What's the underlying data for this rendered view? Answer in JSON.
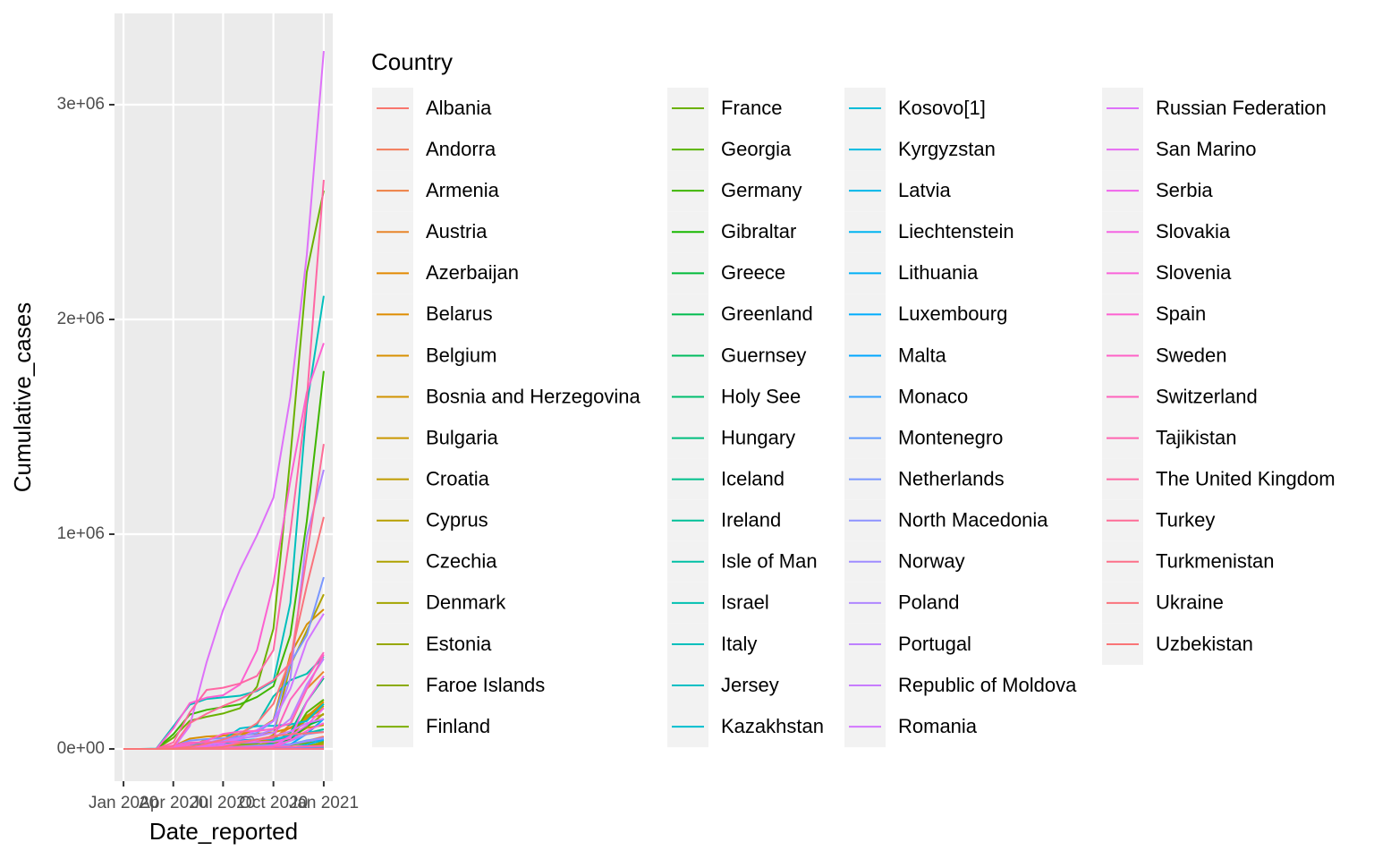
{
  "chart_data": {
    "type": "line",
    "x_label": "Date_reported",
    "y_label": "Cumulative_cases",
    "legend_title": "Country",
    "grid": true,
    "legend_position": "right",
    "x": [
      "Jan 2020",
      "Feb 2020",
      "Mar 2020",
      "Apr 2020",
      "May 2020",
      "Jun 2020",
      "Jul 2020",
      "Aug 2020",
      "Sep 2020",
      "Oct 2020",
      "Nov 2020",
      "Dec 2020",
      "Jan 2021"
    ],
    "xlim": [
      "Jan 2020",
      "Jan 2021"
    ],
    "xticks": [
      "Jan 2020",
      "Apr 2020",
      "Jul 2020",
      "Oct 2020",
      "Jan 2021"
    ],
    "ylim": [
      -150000,
      3425000
    ],
    "yticks": [
      {
        "value": 0,
        "label": "0e+00"
      },
      {
        "value": 1000000,
        "label": "1e+06"
      },
      {
        "value": 2000000,
        "label": "2e+06"
      },
      {
        "value": 3000000,
        "label": "3e+06"
      }
    ],
    "series": [
      {
        "name": "Albania",
        "color": "#F8766D",
        "values": [
          0,
          0,
          0,
          240,
          780,
          1140,
          2500,
          5400,
          9500,
          13600,
          20000,
          37000,
          58000
        ]
      },
      {
        "name": "Andorra",
        "color": "#F37B59",
        "values": [
          0,
          0,
          0,
          390,
          750,
          760,
          860,
          1000,
          1400,
          2300,
          5000,
          7000,
          8300
        ]
      },
      {
        "name": "Armenia",
        "color": "#EE8044",
        "values": [
          0,
          0,
          0,
          570,
          2000,
          9500,
          26000,
          38000,
          44000,
          49000,
          100000,
          143000,
          160000
        ]
      },
      {
        "name": "Austria",
        "color": "#E8852A",
        "values": [
          0,
          0,
          10,
          10000,
          15000,
          17000,
          18000,
          22000,
          28000,
          43000,
          114000,
          280000,
          360000
        ]
      },
      {
        "name": "Azerbaijan",
        "color": "#E38900",
        "values": [
          0,
          0,
          0,
          300,
          1800,
          5300,
          20000,
          33000,
          38000,
          41000,
          60000,
          150000,
          220000
        ]
      },
      {
        "name": "Belarus",
        "color": "#DE8C00",
        "values": [
          0,
          0,
          0,
          150,
          15000,
          43000,
          62000,
          68000,
          71000,
          77000,
          97000,
          140000,
          190000
        ]
      },
      {
        "name": "Belgium",
        "color": "#D89000",
        "values": [
          0,
          0,
          1,
          13000,
          48000,
          58000,
          62000,
          71000,
          86000,
          135000,
          440000,
          580000,
          650000
        ]
      },
      {
        "name": "Bosnia and Herzegovina",
        "color": "#D19300",
        "values": [
          0,
          0,
          0,
          600,
          1700,
          2600,
          5900,
          12000,
          19300,
          26000,
          55000,
          98000,
          111000
        ]
      },
      {
        "name": "Bulgaria",
        "color": "#CA9700",
        "values": [
          0,
          0,
          0,
          400,
          1600,
          2500,
          5400,
          12500,
          16700,
          20500,
          60000,
          155000,
          200000
        ]
      },
      {
        "name": "Croatia",
        "color": "#C09B00",
        "values": [
          0,
          0,
          0,
          960,
          2080,
          2240,
          3000,
          5400,
          10700,
          16000,
          56000,
          140000,
          210000
        ]
      },
      {
        "name": "Cyprus",
        "color": "#B79F00",
        "values": [
          0,
          0,
          0,
          350,
          850,
          950,
          1000,
          1200,
          1500,
          1800,
          5000,
          11000,
          22000
        ]
      },
      {
        "name": "Czechia",
        "color": "#AEA200",
        "values": [
          0,
          0,
          3,
          3300,
          7600,
          9200,
          12000,
          17000,
          26000,
          66000,
          390000,
          550000,
          720000
        ]
      },
      {
        "name": "Denmark",
        "color": "#A3A500",
        "values": [
          0,
          0,
          10,
          3200,
          9500,
          11900,
          13000,
          14000,
          18000,
          30000,
          50000,
          100000,
          165000
        ]
      },
      {
        "name": "Estonia",
        "color": "#97A800",
        "values": [
          0,
          0,
          0,
          780,
          1700,
          1970,
          2000,
          2100,
          2400,
          3400,
          6000,
          13000,
          30000
        ]
      },
      {
        "name": "Faroe Islands",
        "color": "#8BAB00",
        "values": [
          0,
          0,
          0,
          170,
          187,
          187,
          188,
          300,
          420,
          480,
          510,
          520,
          590
        ]
      },
      {
        "name": "Finland",
        "color": "#7CAE00",
        "values": [
          0,
          0,
          12,
          1400,
          5000,
          6900,
          7200,
          7500,
          8300,
          10000,
          18000,
          27000,
          36000
        ]
      },
      {
        "name": "France",
        "color": "#6BB100",
        "values": [
          0,
          0,
          100,
          52000,
          131000,
          150000,
          165000,
          190000,
          290000,
          560000,
          1360000,
          2220000,
          2600000
        ]
      },
      {
        "name": "Georgia",
        "color": "#59B400",
        "values": [
          0,
          0,
          0,
          120,
          600,
          800,
          930,
          1200,
          1400,
          5000,
          51000,
          170000,
          230000
        ]
      },
      {
        "name": "Germany",
        "color": "#3EB600",
        "values": [
          0,
          0,
          130,
          68000,
          160000,
          182000,
          195000,
          208000,
          242000,
          292000,
          530000,
          1060000,
          1760000
        ]
      },
      {
        "name": "Gibraltar",
        "color": "#17B800",
        "values": [
          0,
          0,
          0,
          70,
          140,
          150,
          180,
          190,
          330,
          510,
          900,
          1000,
          1800
        ]
      },
      {
        "name": "Greece",
        "color": "#00BA38",
        "values": [
          0,
          0,
          0,
          1400,
          2600,
          2900,
          3400,
          4900,
          10000,
          19000,
          46000,
          108000,
          140000
        ]
      },
      {
        "name": "Greenland",
        "color": "#00BB4E",
        "values": [
          0,
          0,
          0,
          10,
          11,
          13,
          13,
          14,
          14,
          16,
          18,
          18,
          30
        ]
      },
      {
        "name": "Guernsey",
        "color": "#00BC5F",
        "values": [
          0,
          0,
          0,
          100,
          250,
          250,
          250,
          250,
          250,
          250,
          270,
          300,
          310
        ]
      },
      {
        "name": "Holy See",
        "color": "#00BD6F",
        "values": [
          0,
          0,
          0,
          6,
          12,
          12,
          12,
          12,
          12,
          12,
          26,
          27,
          27
        ]
      },
      {
        "name": "Hungary",
        "color": "#00BE7E",
        "values": [
          0,
          0,
          0,
          580,
          2900,
          3900,
          4200,
          4500,
          6000,
          30000,
          76000,
          220000,
          330000
        ]
      },
      {
        "name": "Iceland",
        "color": "#00C08B",
        "values": [
          0,
          0,
          3,
          1200,
          1800,
          1800,
          1830,
          2000,
          2100,
          3300,
          5100,
          5500,
          5800
        ]
      },
      {
        "name": "Ireland",
        "color": "#00C098",
        "values": [
          0,
          0,
          1,
          3200,
          20600,
          25000,
          25500,
          26700,
          29000,
          37000,
          65000,
          73000,
          92000
        ]
      },
      {
        "name": "Isle of Man",
        "color": "#00C0A5",
        "values": [
          0,
          0,
          0,
          60,
          330,
          336,
          336,
          336,
          336,
          340,
          350,
          360,
          370
        ]
      },
      {
        "name": "Israel",
        "color": "#00C0B1",
        "values": [
          0,
          0,
          10,
          6000,
          16000,
          17000,
          26000,
          73000,
          114000,
          245000,
          320000,
          350000,
          430000
        ]
      },
      {
        "name": "Italy",
        "color": "#00BFBC",
        "values": [
          0,
          0,
          1700,
          105000,
          206000,
          233000,
          240000,
          248000,
          270000,
          315000,
          680000,
          1600000,
          2110000
        ]
      },
      {
        "name": "Jersey",
        "color": "#00BFC4",
        "values": [
          0,
          0,
          0,
          80,
          280,
          310,
          320,
          350,
          400,
          450,
          900,
          2200,
          3000
        ]
      },
      {
        "name": "Kazakhstan",
        "color": "#00BECF",
        "values": [
          0,
          0,
          0,
          360,
          4300,
          11500,
          43000,
          96000,
          106000,
          108000,
          114000,
          130000,
          210000
        ]
      },
      {
        "name": "Kosovo[1]",
        "color": "#00BCD8",
        "values": [
          0,
          0,
          0,
          100,
          800,
          1100,
          3300,
          8500,
          13800,
          16000,
          23000,
          38000,
          50000
        ]
      },
      {
        "name": "Kyrgyzstan",
        "color": "#00BAE1",
        "values": [
          0,
          0,
          0,
          110,
          750,
          1900,
          10000,
          40000,
          45000,
          47000,
          60000,
          75000,
          81000
        ]
      },
      {
        "name": "Latvia",
        "color": "#00B7E9",
        "values": [
          0,
          0,
          0,
          450,
          1000,
          1080,
          1120,
          1250,
          1300,
          1900,
          6000,
          20000,
          42000
        ]
      },
      {
        "name": "Liechtenstein",
        "color": "#00B4F0",
        "values": [
          0,
          0,
          0,
          60,
          82,
          82,
          84,
          100,
          110,
          120,
          1000,
          1600,
          2000
        ]
      },
      {
        "name": "Lithuania",
        "color": "#00B0F6",
        "values": [
          0,
          0,
          0,
          580,
          1400,
          1690,
          1830,
          2100,
          3500,
          4800,
          21000,
          70000,
          140000
        ]
      },
      {
        "name": "Luxembourg",
        "color": "#00ACFC",
        "values": [
          0,
          0,
          7,
          2300,
          3900,
          4000,
          4500,
          7000,
          7900,
          9300,
          20000,
          35000,
          46000
        ]
      },
      {
        "name": "Malta",
        "color": "#00A7FF",
        "values": [
          0,
          0,
          0,
          160,
          460,
          610,
          670,
          1000,
          2000,
          3100,
          6300,
          10500,
          12800
        ]
      },
      {
        "name": "Monaco",
        "color": "#35A2FF",
        "values": [
          0,
          0,
          0,
          50,
          95,
          98,
          100,
          130,
          180,
          240,
          600,
          700,
          900
        ]
      },
      {
        "name": "Montenegro",
        "color": "#619CFF",
        "values": [
          0,
          0,
          0,
          200,
          320,
          324,
          1000,
          3500,
          5200,
          11000,
          20000,
          40000,
          49000
        ]
      },
      {
        "name": "Netherlands",
        "color": "#7997FF",
        "values": [
          0,
          0,
          20,
          13000,
          39000,
          46000,
          50000,
          58000,
          75000,
          130000,
          400000,
          530000,
          800000
        ]
      },
      {
        "name": "North Macedonia",
        "color": "#8D92FF",
        "values": [
          0,
          0,
          0,
          400,
          1500,
          2300,
          7000,
          11000,
          15500,
          20000,
          37000,
          68000,
          80000
        ]
      },
      {
        "name": "Norway",
        "color": "#9F8CFF",
        "values": [
          0,
          0,
          25,
          4500,
          7800,
          8500,
          8900,
          9700,
          12000,
          14000,
          21000,
          36000,
          50000
        ]
      },
      {
        "name": "Poland",
        "color": "#AF86FF",
        "values": [
          0,
          0,
          0,
          2300,
          12000,
          23000,
          34000,
          45000,
          65000,
          90000,
          330000,
          990000,
          1300000
        ]
      },
      {
        "name": "Portugal",
        "color": "#BD81FF",
        "values": [
          0,
          0,
          0,
          8000,
          25000,
          32500,
          42000,
          51000,
          58000,
          76000,
          140000,
          300000,
          420000
        ]
      },
      {
        "name": "Republic of Moldova",
        "color": "#C77CFF",
        "values": [
          0,
          0,
          0,
          420,
          4100,
          8800,
          19000,
          29000,
          41000,
          59000,
          82000,
          120000,
          140000
        ]
      },
      {
        "name": "Romania",
        "color": "#D376FF",
        "values": [
          0,
          0,
          3,
          2300,
          12000,
          19300,
          27000,
          52000,
          88000,
          130000,
          280000,
          500000,
          630000
        ]
      },
      {
        "name": "Russian Federation",
        "color": "#DE71F9",
        "values": [
          0,
          0,
          0,
          2800,
          106000,
          405000,
          647000,
          835000,
          995000,
          1170000,
          1640000,
          2300000,
          3250000
        ]
      },
      {
        "name": "San Marino",
        "color": "#E76BF3",
        "values": [
          0,
          0,
          0,
          230,
          580,
          670,
          700,
          700,
          720,
          770,
          1300,
          1900,
          2200
        ]
      },
      {
        "name": "Serbia",
        "color": "#F064EB",
        "values": [
          0,
          0,
          0,
          1000,
          9000,
          11400,
          16000,
          29000,
          31700,
          33400,
          50000,
          220000,
          340000
        ]
      },
      {
        "name": "Slovakia",
        "color": "#F564E3",
        "values": [
          0,
          0,
          0,
          400,
          1400,
          1520,
          1800,
          2400,
          3700,
          13000,
          60000,
          110000,
          190000
        ]
      },
      {
        "name": "Slovenia",
        "color": "#FA62DA",
        "values": [
          0,
          0,
          0,
          840,
          1420,
          1480,
          1700,
          2100,
          3700,
          8000,
          40000,
          84000,
          120000
        ]
      },
      {
        "name": "Spain",
        "color": "#FD61D1",
        "values": [
          0,
          0,
          85,
          95000,
          213000,
          239000,
          250000,
          300000,
          460000,
          770000,
          1250000,
          1660000,
          1890000
        ]
      },
      {
        "name": "Sweden",
        "color": "#FF61C7",
        "values": [
          0,
          0,
          14,
          4400,
          21000,
          37500,
          70000,
          81000,
          84000,
          93000,
          120000,
          280000,
          440000
        ]
      },
      {
        "name": "Switzerland",
        "color": "#FF62BC",
        "values": [
          0,
          0,
          30,
          17000,
          30000,
          31000,
          32000,
          35000,
          43000,
          52000,
          230000,
          330000,
          450000
        ]
      },
      {
        "name": "Tajikistan",
        "color": "#FF64B0",
        "values": [
          0,
          0,
          0,
          0,
          230,
          4200,
          6000,
          7400,
          8400,
          9500,
          10500,
          12400,
          13300
        ]
      },
      {
        "name": "The United Kingdom",
        "color": "#FF67A4",
        "values": [
          0,
          0,
          40,
          30000,
          170000,
          275000,
          285000,
          305000,
          340000,
          460000,
          1010000,
          1630000,
          2650000
        ]
      },
      {
        "name": "Turkey",
        "color": "#FE6C97",
        "values": [
          0,
          0,
          0,
          13500,
          120000,
          164000,
          200000,
          232000,
          275000,
          320000,
          400000,
          900000,
          1420000
        ]
      },
      {
        "name": "Turkmenistan",
        "color": "#FC7089",
        "values": [
          0,
          0,
          0,
          0,
          0,
          0,
          0,
          0,
          0,
          0,
          0,
          0,
          0
        ]
      },
      {
        "name": "Ukraine",
        "color": "#FA737C",
        "values": [
          0,
          0,
          0,
          800,
          10000,
          24000,
          44000,
          71000,
          120000,
          210000,
          420000,
          760000,
          1080000
        ]
      },
      {
        "name": "Uzbekistan",
        "color": "#F97577",
        "values": [
          0,
          0,
          0,
          200,
          2100,
          4000,
          9000,
          28000,
          45000,
          60000,
          69000,
          73000,
          78000
        ]
      }
    ]
  }
}
